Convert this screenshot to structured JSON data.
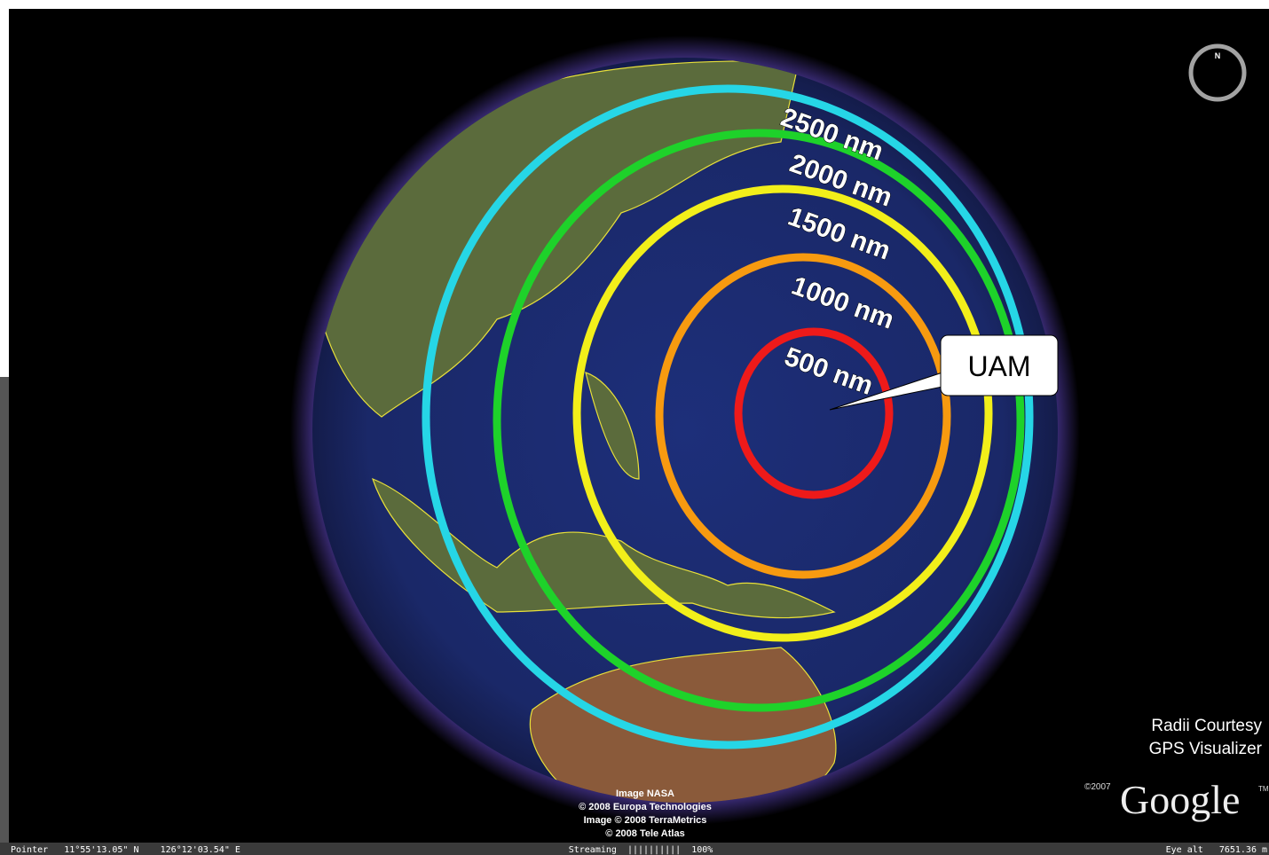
{
  "rings": [
    {
      "label": "2500 nm"
    },
    {
      "label": "2000 nm"
    },
    {
      "label": "1500 nm"
    },
    {
      "label": "1000 nm"
    },
    {
      "label": "500 nm"
    }
  ],
  "callout": {
    "label": "UAM"
  },
  "compass": {
    "label": "N"
  },
  "courtesy": {
    "line1": "Radii Courtesy",
    "line2": "GPS Visualizer"
  },
  "imagery_credits": [
    "Image NASA",
    "© 2008 Europa Technologies",
    "Image © 2008 TerraMetrics",
    "© 2008 Tele Atlas"
  ],
  "logo": {
    "copyright": "©2007",
    "name": "Google",
    "tm": "TM"
  },
  "status_bar": {
    "pointer": "Pointer   11°55'13.05\" N    126°12'03.54\" E",
    "streaming": "Streaming  ||||||||||  100%",
    "eye_alt": "Eye alt   7651.36 m"
  }
}
